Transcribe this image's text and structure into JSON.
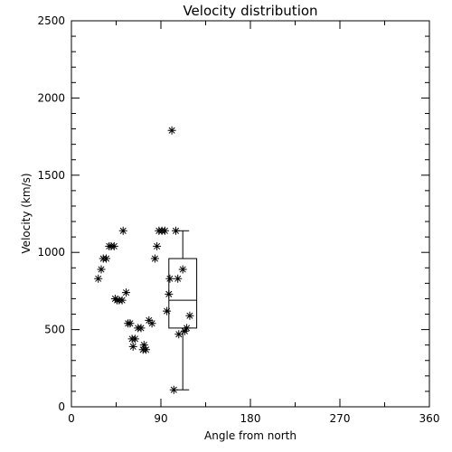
{
  "chart_data": {
    "type": "scatter",
    "title": "Velocity distribution",
    "xlabel": "Angle from north",
    "ylabel": "Velocity (km/s)",
    "xlim": [
      0,
      360
    ],
    "ylim": [
      0,
      2500
    ],
    "xticks": [
      0,
      90,
      180,
      270,
      360
    ],
    "yticks": [
      0,
      500,
      1000,
      1500,
      2000,
      2500
    ],
    "grid": false,
    "marker": "asterisk",
    "color": "#000000",
    "points": [
      {
        "x": 27,
        "y": 830
      },
      {
        "x": 30,
        "y": 890
      },
      {
        "x": 32,
        "y": 960
      },
      {
        "x": 35,
        "y": 960
      },
      {
        "x": 38,
        "y": 1040
      },
      {
        "x": 40,
        "y": 1040
      },
      {
        "x": 43,
        "y": 1040
      },
      {
        "x": 44,
        "y": 700
      },
      {
        "x": 46,
        "y": 690
      },
      {
        "x": 48,
        "y": 690
      },
      {
        "x": 51,
        "y": 690
      },
      {
        "x": 52,
        "y": 1140
      },
      {
        "x": 55,
        "y": 740
      },
      {
        "x": 57,
        "y": 540
      },
      {
        "x": 59,
        "y": 540
      },
      {
        "x": 61,
        "y": 440
      },
      {
        "x": 62,
        "y": 390
      },
      {
        "x": 64,
        "y": 440
      },
      {
        "x": 67,
        "y": 510
      },
      {
        "x": 70,
        "y": 510
      },
      {
        "x": 72,
        "y": 370
      },
      {
        "x": 73,
        "y": 400
      },
      {
        "x": 75,
        "y": 370
      },
      {
        "x": 78,
        "y": 560
      },
      {
        "x": 81,
        "y": 540
      },
      {
        "x": 84,
        "y": 960
      },
      {
        "x": 86,
        "y": 1040
      },
      {
        "x": 88,
        "y": 1140
      },
      {
        "x": 91,
        "y": 1140
      },
      {
        "x": 94,
        "y": 1140
      },
      {
        "x": 96,
        "y": 620
      },
      {
        "x": 98,
        "y": 730
      },
      {
        "x": 99,
        "y": 830
      },
      {
        "x": 101,
        "y": 1790
      },
      {
        "x": 103,
        "y": 110
      },
      {
        "x": 105,
        "y": 1140
      },
      {
        "x": 107,
        "y": 830
      },
      {
        "x": 108,
        "y": 470
      },
      {
        "x": 112,
        "y": 890
      },
      {
        "x": 114,
        "y": 490
      },
      {
        "x": 116,
        "y": 510
      },
      {
        "x": 119,
        "y": 590
      }
    ],
    "boxplot": {
      "x_left": 98,
      "x_right": 126,
      "whisker_low": 110,
      "q1": 510,
      "median": 690,
      "q3": 960,
      "whisker_high": 1140
    }
  }
}
